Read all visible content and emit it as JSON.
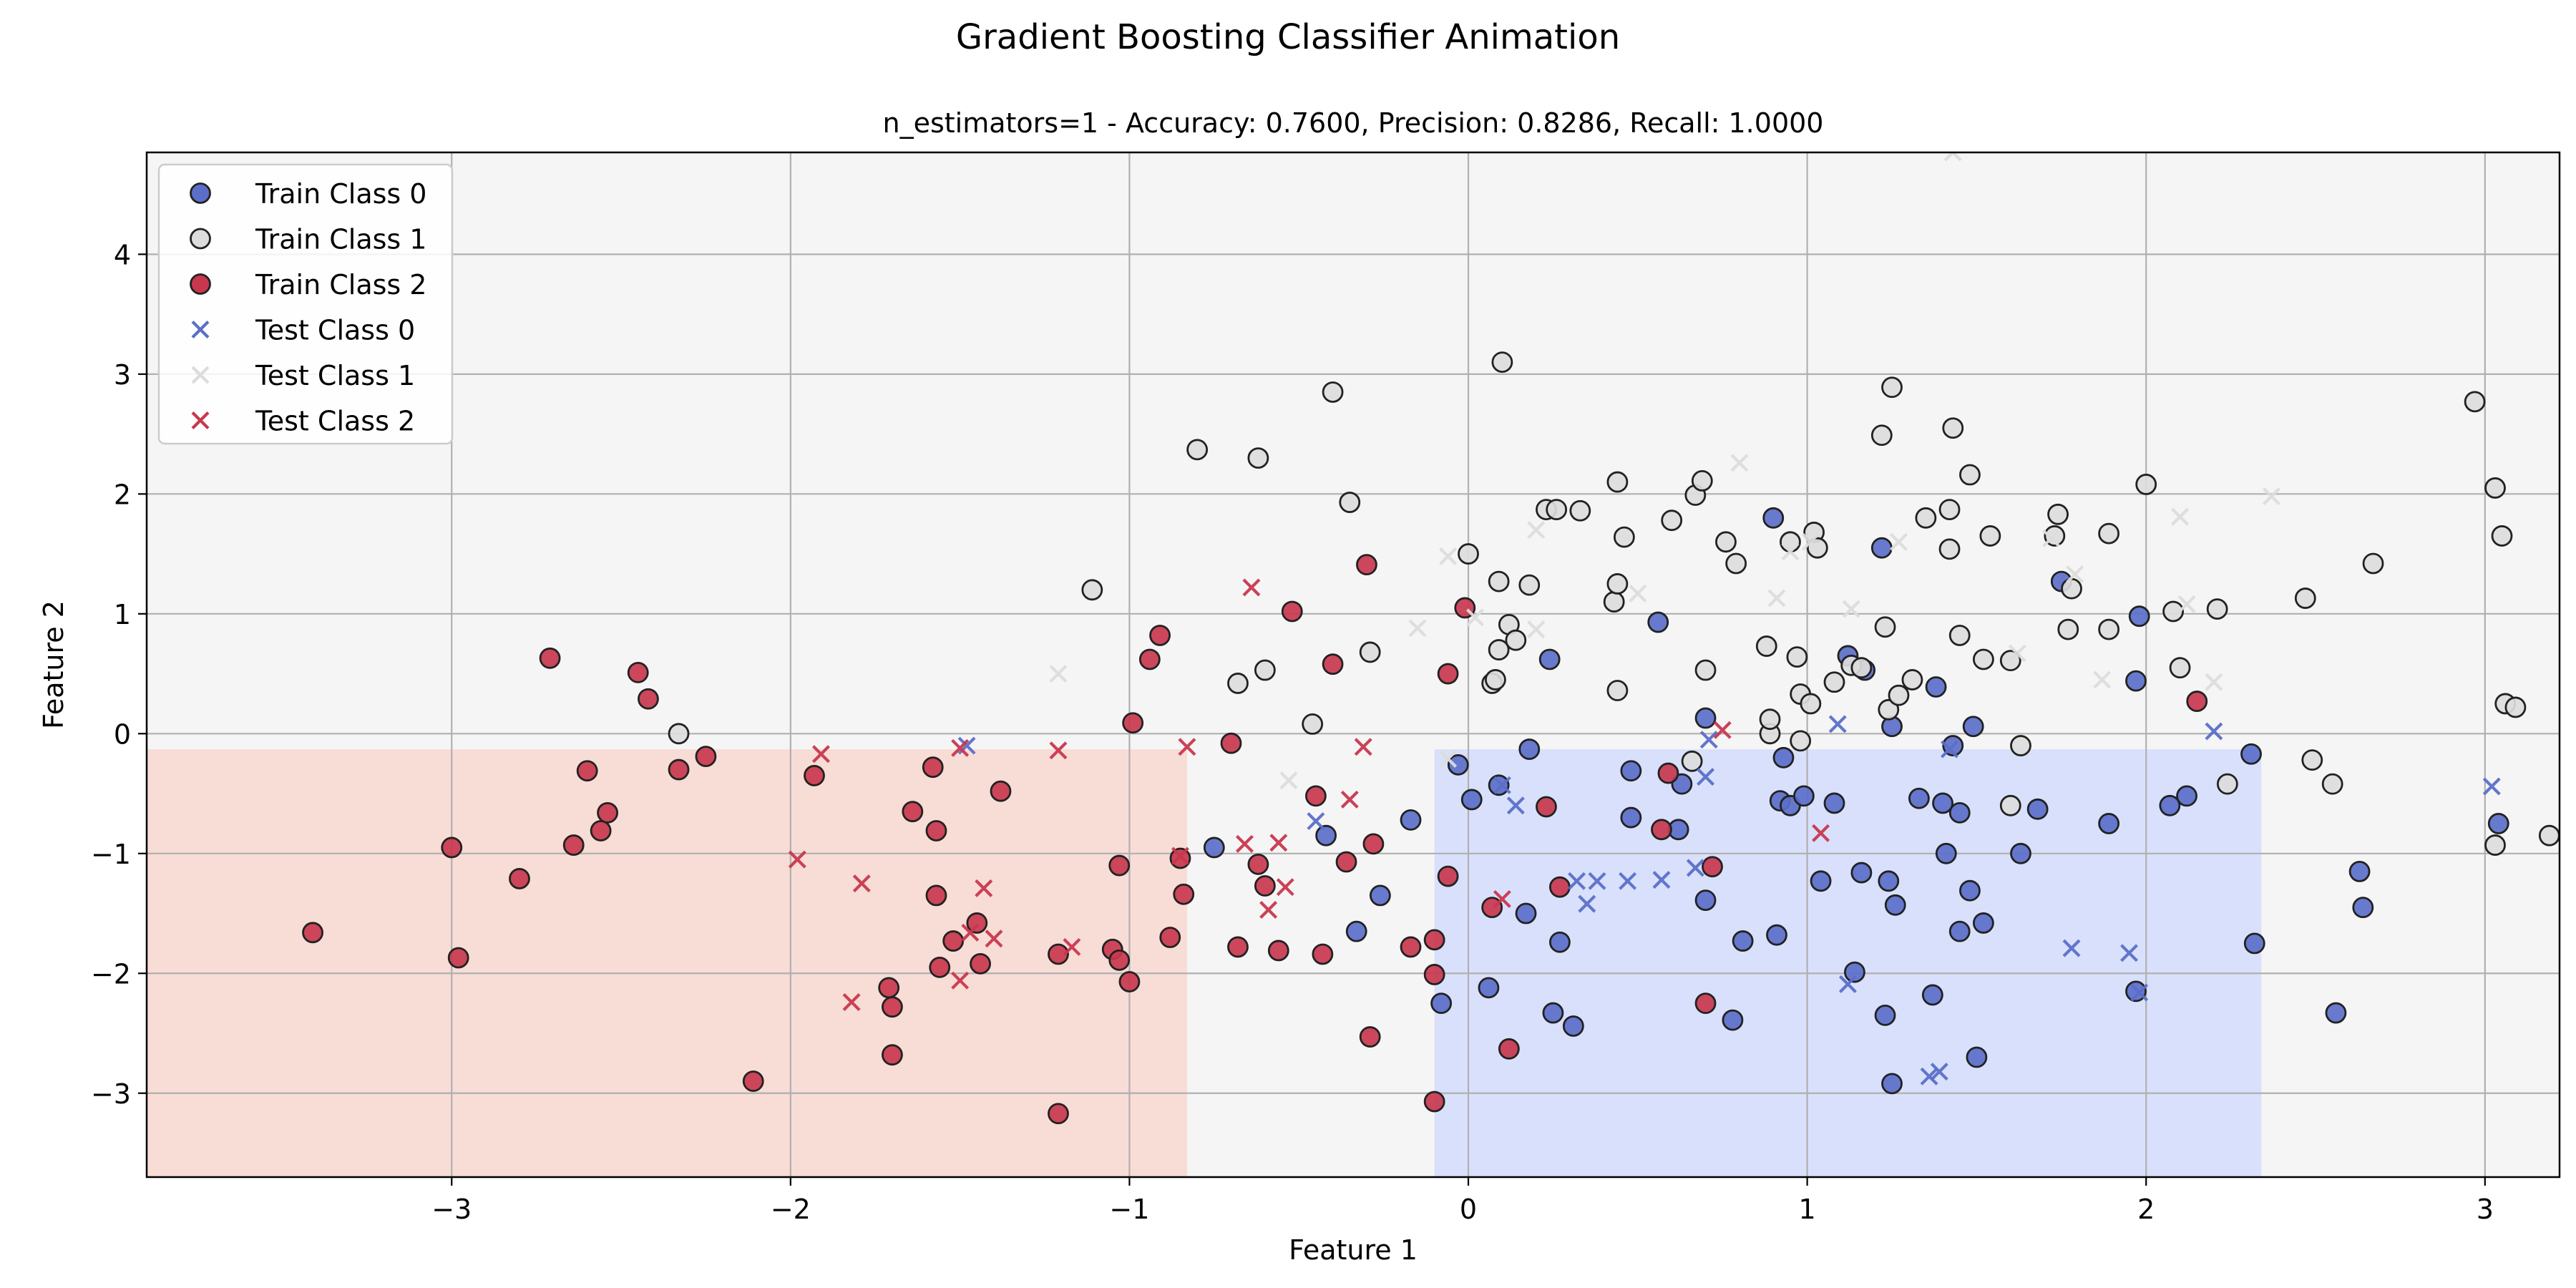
{
  "figure": {
    "suptitle": "Gradient Boosting Classifier Animation"
  },
  "colors": {
    "class0": "#5b6fc9",
    "class1": "#dcdcdc",
    "class2": "#c8374e",
    "test1": "#dcdcdc",
    "region_class0": "#d9e0fb",
    "region_class1": "#f5f5f5",
    "region_class2": "#f8dcd6",
    "grid": "#b0b0b0"
  },
  "chart_data": {
    "type": "scatter",
    "title": "n_estimators=1 - Accuracy: 0.7600, Precision: 0.8286, Recall: 1.0000",
    "xlabel": "Feature 1",
    "ylabel": "Feature 2",
    "xlim": [
      -3.9,
      3.22
    ],
    "ylim": [
      -3.7,
      4.85
    ],
    "xticks": [
      -3,
      -2,
      -1,
      0,
      1,
      2,
      3
    ],
    "xtick_labels": [
      "−3",
      "−2",
      "−1",
      "0",
      "1",
      "2",
      "3"
    ],
    "yticks": [
      -3,
      -2,
      -1,
      0,
      1,
      2,
      3,
      4
    ],
    "ytick_labels": [
      "−3",
      "−2",
      "−1",
      "0",
      "1",
      "2",
      "3",
      "4"
    ],
    "grid": true,
    "legend_position": "top-left",
    "decision_regions": [
      {
        "class": 2,
        "x": [
          -3.9,
          -0.83
        ],
        "y": [
          -3.7,
          -0.13
        ]
      },
      {
        "class": 0,
        "x": [
          -0.1,
          2.34
        ],
        "y": [
          -3.7,
          -0.13
        ]
      }
    ],
    "series": [
      {
        "name": "Train Class 0",
        "marker": "circle",
        "class": 0,
        "points": [
          [
            -0.75,
            -0.95
          ],
          [
            -0.42,
            -0.85
          ],
          [
            -0.26,
            -1.35
          ],
          [
            -0.33,
            -1.65
          ],
          [
            -0.17,
            -0.72
          ],
          [
            -0.08,
            -2.25
          ],
          [
            -0.03,
            -0.26
          ],
          [
            0.01,
            -0.55
          ],
          [
            0.06,
            -2.12
          ],
          [
            0.09,
            -0.43
          ],
          [
            0.18,
            -0.13
          ],
          [
            0.17,
            -1.5
          ],
          [
            0.24,
            0.62
          ],
          [
            0.25,
            -2.33
          ],
          [
            0.27,
            -1.74
          ],
          [
            0.31,
            -2.44
          ],
          [
            0.48,
            -0.31
          ],
          [
            0.48,
            -0.7
          ],
          [
            0.56,
            0.93
          ],
          [
            0.62,
            -0.8
          ],
          [
            0.63,
            -0.42
          ],
          [
            0.7,
            0.13
          ],
          [
            0.7,
            -1.39
          ],
          [
            0.78,
            -2.39
          ],
          [
            0.81,
            -1.73
          ],
          [
            0.9,
            1.8
          ],
          [
            0.91,
            -1.68
          ],
          [
            0.92,
            -0.56
          ],
          [
            0.93,
            -0.2
          ],
          [
            0.95,
            -0.6
          ],
          [
            0.99,
            -0.52
          ],
          [
            1.04,
            -1.23
          ],
          [
            1.08,
            -0.58
          ],
          [
            1.12,
            0.65
          ],
          [
            1.14,
            -1.99
          ],
          [
            1.16,
            -1.16
          ],
          [
            1.17,
            0.53
          ],
          [
            1.22,
            1.55
          ],
          [
            1.23,
            -2.35
          ],
          [
            1.24,
            -1.23
          ],
          [
            1.25,
            0.06
          ],
          [
            1.26,
            -1.43
          ],
          [
            1.25,
            -2.92
          ],
          [
            1.33,
            -0.54
          ],
          [
            1.37,
            -2.18
          ],
          [
            1.38,
            0.39
          ],
          [
            1.4,
            -0.58
          ],
          [
            1.41,
            -1.0
          ],
          [
            1.43,
            -0.1
          ],
          [
            1.45,
            -0.66
          ],
          [
            1.45,
            -1.65
          ],
          [
            1.48,
            -1.31
          ],
          [
            1.49,
            0.06
          ],
          [
            1.5,
            -2.7
          ],
          [
            1.52,
            -1.58
          ],
          [
            1.63,
            -1.0
          ],
          [
            1.68,
            -0.63
          ],
          [
            1.75,
            1.27
          ],
          [
            1.89,
            -0.75
          ],
          [
            1.97,
            0.44
          ],
          [
            1.98,
            0.98
          ],
          [
            1.97,
            -2.15
          ],
          [
            2.07,
            -0.6
          ],
          [
            2.12,
            -0.52
          ],
          [
            2.31,
            -0.17
          ],
          [
            2.32,
            -1.75
          ],
          [
            2.56,
            -2.33
          ],
          [
            2.63,
            -1.15
          ],
          [
            2.64,
            -1.45
          ],
          [
            3.04,
            -0.75
          ]
        ]
      },
      {
        "name": "Train Class 1",
        "marker": "circle",
        "class": 1,
        "points": [
          [
            -2.33,
            0.0
          ],
          [
            -1.11,
            1.2
          ],
          [
            -0.8,
            2.37
          ],
          [
            -0.68,
            0.42
          ],
          [
            -0.62,
            2.3
          ],
          [
            -0.6,
            0.53
          ],
          [
            -0.4,
            2.85
          ],
          [
            -0.35,
            1.93
          ],
          [
            -0.46,
            0.08
          ],
          [
            -0.29,
            0.68
          ],
          [
            0.0,
            1.5
          ],
          [
            0.07,
            0.42
          ],
          [
            0.08,
            0.45
          ],
          [
            0.09,
            0.7
          ],
          [
            0.09,
            1.27
          ],
          [
            0.1,
            3.1
          ],
          [
            0.12,
            0.91
          ],
          [
            0.14,
            0.78
          ],
          [
            0.18,
            1.24
          ],
          [
            0.23,
            1.87
          ],
          [
            0.26,
            1.87
          ],
          [
            0.33,
            1.86
          ],
          [
            0.43,
            1.1
          ],
          [
            0.44,
            1.25
          ],
          [
            0.44,
            0.36
          ],
          [
            0.44,
            2.1
          ],
          [
            0.46,
            1.64
          ],
          [
            0.6,
            1.78
          ],
          [
            0.67,
            1.99
          ],
          [
            0.69,
            2.11
          ],
          [
            0.7,
            0.53
          ],
          [
            0.66,
            -0.23
          ],
          [
            0.76,
            1.6
          ],
          [
            0.79,
            1.42
          ],
          [
            0.88,
            0.73
          ],
          [
            0.89,
            0.0
          ],
          [
            0.89,
            0.12
          ],
          [
            0.95,
            1.6
          ],
          [
            0.97,
            0.64
          ],
          [
            0.98,
            -0.06
          ],
          [
            0.98,
            0.33
          ],
          [
            1.01,
            0.25
          ],
          [
            1.02,
            1.68
          ],
          [
            1.03,
            1.55
          ],
          [
            1.08,
            0.43
          ],
          [
            1.13,
            0.57
          ],
          [
            1.16,
            0.55
          ],
          [
            1.22,
            2.49
          ],
          [
            1.23,
            0.89
          ],
          [
            1.24,
            0.2
          ],
          [
            1.25,
            2.89
          ],
          [
            1.27,
            0.32
          ],
          [
            1.31,
            0.45
          ],
          [
            1.35,
            1.8
          ],
          [
            1.42,
            1.87
          ],
          [
            1.42,
            1.54
          ],
          [
            1.43,
            2.55
          ],
          [
            1.45,
            0.82
          ],
          [
            1.48,
            2.16
          ],
          [
            1.52,
            0.62
          ],
          [
            1.54,
            1.65
          ],
          [
            1.6,
            0.61
          ],
          [
            1.6,
            -0.6
          ],
          [
            1.63,
            -0.1
          ],
          [
            1.73,
            1.65
          ],
          [
            1.74,
            1.83
          ],
          [
            1.77,
            0.87
          ],
          [
            1.78,
            1.21
          ],
          [
            1.89,
            0.87
          ],
          [
            1.89,
            1.67
          ],
          [
            2.0,
            2.08
          ],
          [
            2.08,
            1.02
          ],
          [
            2.1,
            0.55
          ],
          [
            2.21,
            1.04
          ],
          [
            2.24,
            -0.42
          ],
          [
            2.47,
            1.13
          ],
          [
            2.49,
            -0.22
          ],
          [
            2.55,
            -0.42
          ],
          [
            2.67,
            1.42
          ],
          [
            2.97,
            2.77
          ],
          [
            3.03,
            2.05
          ],
          [
            3.05,
            1.65
          ],
          [
            3.06,
            0.25
          ],
          [
            3.09,
            0.22
          ],
          [
            3.03,
            -0.93
          ],
          [
            3.19,
            -0.85
          ]
        ]
      },
      {
        "name": "Train Class 2",
        "marker": "circle",
        "class": 2,
        "points": [
          [
            -3.41,
            -1.66
          ],
          [
            -3.0,
            -0.95
          ],
          [
            -2.98,
            -1.87
          ],
          [
            -2.8,
            -1.21
          ],
          [
            -2.71,
            0.63
          ],
          [
            -2.64,
            -0.93
          ],
          [
            -2.6,
            -0.31
          ],
          [
            -2.56,
            -0.81
          ],
          [
            -2.54,
            -0.66
          ],
          [
            -2.45,
            0.51
          ],
          [
            -2.42,
            0.29
          ],
          [
            -2.33,
            -0.3
          ],
          [
            -2.25,
            -0.19
          ],
          [
            -2.11,
            -2.9
          ],
          [
            -1.93,
            -0.35
          ],
          [
            -1.71,
            -2.12
          ],
          [
            -1.7,
            -2.28
          ],
          [
            -1.7,
            -2.68
          ],
          [
            -1.64,
            -0.65
          ],
          [
            -1.58,
            -0.28
          ],
          [
            -1.57,
            -0.81
          ],
          [
            -1.57,
            -1.35
          ],
          [
            -1.56,
            -1.95
          ],
          [
            -1.52,
            -1.73
          ],
          [
            -1.45,
            -1.58
          ],
          [
            -1.44,
            -1.92
          ],
          [
            -1.38,
            -0.48
          ],
          [
            -1.21,
            -1.84
          ],
          [
            -1.21,
            -3.17
          ],
          [
            -1.05,
            -1.8
          ],
          [
            -1.03,
            -1.1
          ],
          [
            -1.03,
            -1.89
          ],
          [
            -1.0,
            -2.07
          ],
          [
            -0.99,
            0.09
          ],
          [
            -0.94,
            0.62
          ],
          [
            -0.91,
            0.82
          ],
          [
            -0.88,
            -1.7
          ],
          [
            -0.84,
            -1.34
          ],
          [
            -0.85,
            -1.04
          ],
          [
            -0.7,
            -0.08
          ],
          [
            -0.68,
            -1.78
          ],
          [
            -0.62,
            -1.09
          ],
          [
            -0.6,
            -1.27
          ],
          [
            -0.56,
            -1.81
          ],
          [
            -0.52,
            1.02
          ],
          [
            -0.45,
            -0.52
          ],
          [
            -0.43,
            -1.84
          ],
          [
            -0.4,
            0.58
          ],
          [
            -0.36,
            -1.07
          ],
          [
            -0.3,
            1.41
          ],
          [
            -0.29,
            -2.53
          ],
          [
            -0.28,
            -0.92
          ],
          [
            -0.17,
            -1.78
          ],
          [
            -0.1,
            -1.72
          ],
          [
            -0.1,
            -2.01
          ],
          [
            -0.1,
            -3.07
          ],
          [
            -0.06,
            0.5
          ],
          [
            -0.06,
            -1.19
          ],
          [
            -0.01,
            1.05
          ],
          [
            0.07,
            -1.45
          ],
          [
            0.12,
            -2.63
          ],
          [
            0.23,
            -0.61
          ],
          [
            0.27,
            -1.28
          ],
          [
            0.57,
            -0.8
          ],
          [
            0.59,
            -0.33
          ],
          [
            0.7,
            -2.25
          ],
          [
            0.72,
            -1.11
          ],
          [
            2.15,
            0.27
          ]
        ]
      },
      {
        "name": "Test Class 0",
        "marker": "x",
        "class": 0,
        "points": [
          [
            -1.48,
            -0.1
          ],
          [
            -0.45,
            -0.73
          ],
          [
            0.1,
            -0.43
          ],
          [
            0.14,
            -0.6
          ],
          [
            0.32,
            -1.23
          ],
          [
            0.35,
            -1.42
          ],
          [
            0.38,
            -1.23
          ],
          [
            0.47,
            -1.23
          ],
          [
            0.57,
            -1.22
          ],
          [
            0.67,
            -1.12
          ],
          [
            0.7,
            -0.36
          ],
          [
            0.71,
            -0.05
          ],
          [
            1.09,
            0.08
          ],
          [
            1.12,
            -2.09
          ],
          [
            1.36,
            -2.86
          ],
          [
            1.39,
            -2.82
          ],
          [
            1.42,
            -0.13
          ],
          [
            1.78,
            -1.79
          ],
          [
            1.95,
            -1.83
          ],
          [
            1.98,
            -2.16
          ],
          [
            2.2,
            0.02
          ],
          [
            3.02,
            -0.44
          ]
        ]
      },
      {
        "name": "Test Class 1",
        "marker": "x",
        "class": 1,
        "points": [
          [
            -1.21,
            0.5
          ],
          [
            -0.53,
            -0.39
          ],
          [
            -0.15,
            0.88
          ],
          [
            -0.06,
            -0.21
          ],
          [
            -0.06,
            1.48
          ],
          [
            0.02,
            0.97
          ],
          [
            0.2,
            0.87
          ],
          [
            0.2,
            1.7
          ],
          [
            0.5,
            1.17
          ],
          [
            0.8,
            2.26
          ],
          [
            0.91,
            1.13
          ],
          [
            0.95,
            1.52
          ],
          [
            1.01,
            1.6
          ],
          [
            1.13,
            1.04
          ],
          [
            1.27,
            1.6
          ],
          [
            1.43,
            4.85
          ],
          [
            1.62,
            0.67
          ],
          [
            1.72,
            1.63
          ],
          [
            1.79,
            1.33
          ],
          [
            1.87,
            0.45
          ],
          [
            2.1,
            1.81
          ],
          [
            2.12,
            1.08
          ],
          [
            2.2,
            0.43
          ],
          [
            2.37,
            1.98
          ]
        ]
      },
      {
        "name": "Test Class 2",
        "marker": "x",
        "class": 2,
        "points": [
          [
            -1.98,
            -1.05
          ],
          [
            -1.91,
            -0.17
          ],
          [
            -1.82,
            -2.24
          ],
          [
            -1.79,
            -1.25
          ],
          [
            -1.5,
            -0.12
          ],
          [
            -1.5,
            -2.06
          ],
          [
            -1.47,
            -1.66
          ],
          [
            -1.43,
            -1.29
          ],
          [
            -1.4,
            -1.71
          ],
          [
            -1.21,
            -0.14
          ],
          [
            -1.17,
            -1.78
          ],
          [
            -0.85,
            -1.02
          ],
          [
            -0.83,
            -0.11
          ],
          [
            -0.66,
            -0.92
          ],
          [
            -0.64,
            1.22
          ],
          [
            -0.59,
            -1.47
          ],
          [
            -0.56,
            -0.91
          ],
          [
            -0.54,
            -1.28
          ],
          [
            -0.35,
            -0.55
          ],
          [
            -0.31,
            -0.11
          ],
          [
            0.1,
            -1.38
          ],
          [
            0.75,
            0.03
          ],
          [
            1.04,
            -0.83
          ]
        ]
      }
    ]
  }
}
